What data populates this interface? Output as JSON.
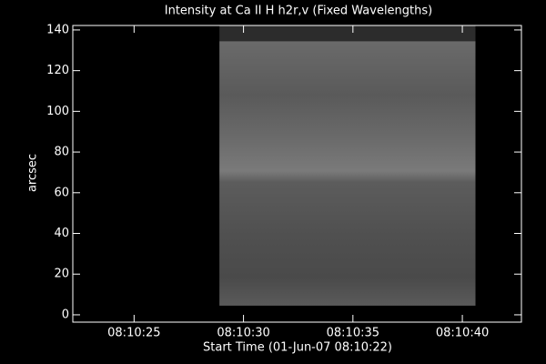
{
  "chart_data": {
    "type": "image",
    "title": "Intensity at Ca II H h2r,v (Fixed Wavelengths)",
    "x_label": "Start Time (01-Jun-07 08:10:22)",
    "y_label": "arcsec",
    "xlim": [
      0.2,
      20.7
    ],
    "xticks": [
      {
        "value": 3,
        "label": "08:10:25"
      },
      {
        "value": 8,
        "label": "08:10:30"
      },
      {
        "value": 13,
        "label": "08:10:35"
      },
      {
        "value": 18,
        "label": "08:10:40"
      }
    ],
    "ylim": [
      -3.6,
      142.2
    ],
    "yticks": [
      0,
      20,
      40,
      60,
      80,
      100,
      120,
      140
    ],
    "image": {
      "x": [
        6.9,
        18.6
      ],
      "y": [
        4.5,
        142.2
      ]
    }
  }
}
